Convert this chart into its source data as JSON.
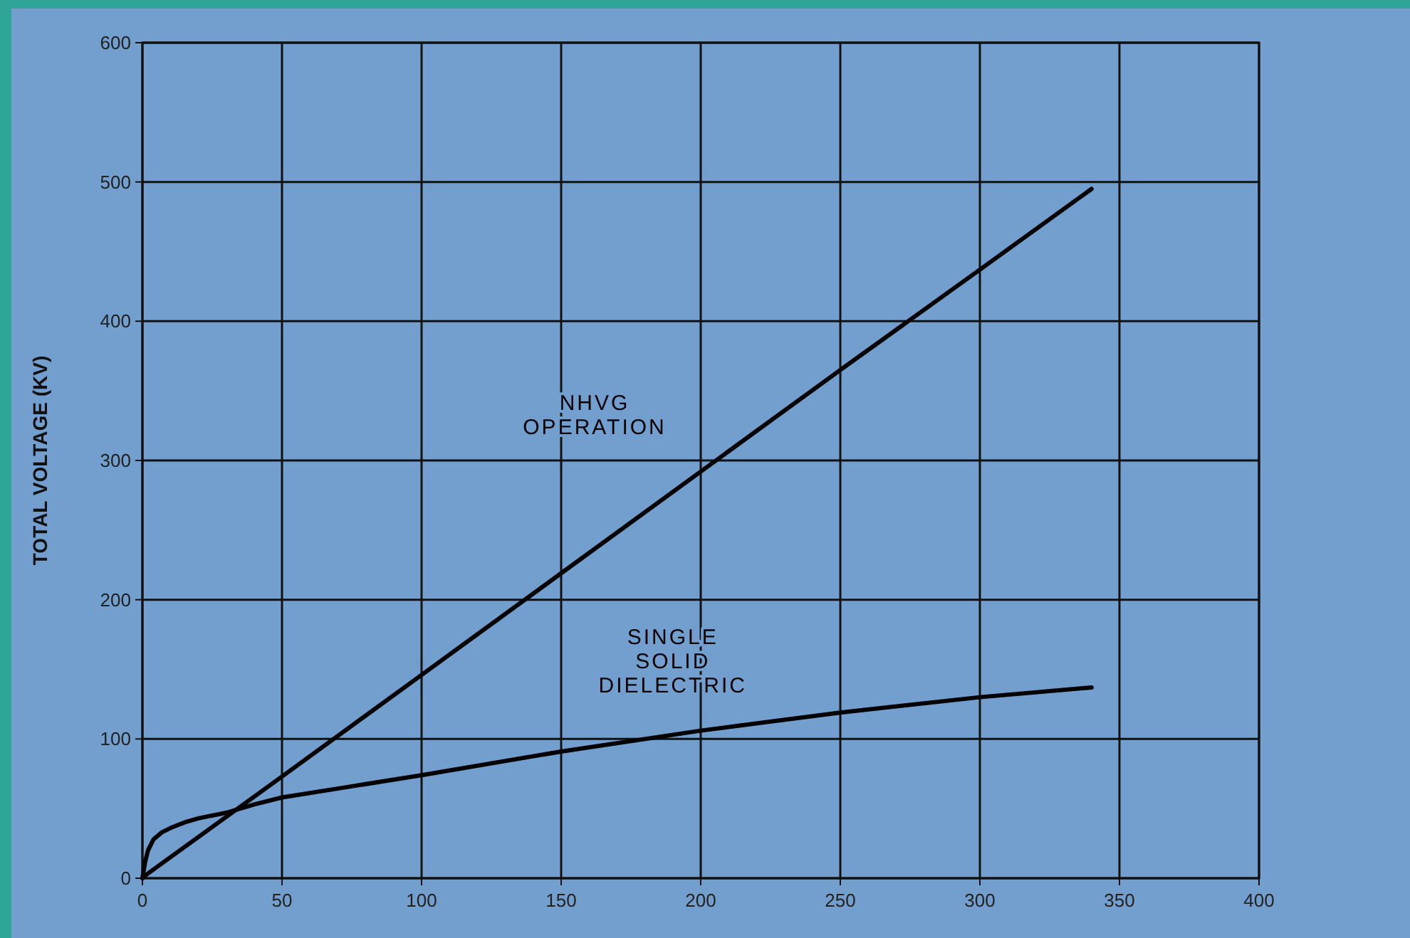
{
  "chart_data": {
    "type": "line",
    "ylabel": "TOTAL VOLTAGE (KV)",
    "xlim": [
      0,
      400
    ],
    "ylim": [
      0,
      600
    ],
    "xticks": [
      0,
      50,
      100,
      150,
      200,
      250,
      300,
      350,
      400
    ],
    "yticks": [
      0,
      100,
      200,
      300,
      400,
      500,
      600
    ],
    "grid": true,
    "series": [
      {
        "name": "NHVG OPERATION",
        "color": "#000000",
        "x": [
          0,
          1,
          50,
          100,
          150,
          200,
          250,
          300,
          340
        ],
        "values": [
          0,
          2,
          73,
          146,
          219,
          292,
          365,
          437,
          495
        ]
      },
      {
        "name": "SINGLE SOLID DIELECTRIC",
        "color": "#000000",
        "x": [
          0,
          1,
          2,
          4,
          7,
          10,
          15,
          20,
          30,
          40,
          50,
          75,
          100,
          150,
          200,
          250,
          300,
          340
        ],
        "values": [
          0,
          12,
          20,
          28,
          33,
          36,
          40,
          43,
          47,
          53,
          58,
          66,
          74,
          91,
          106,
          119,
          130,
          137
        ]
      }
    ]
  }
}
